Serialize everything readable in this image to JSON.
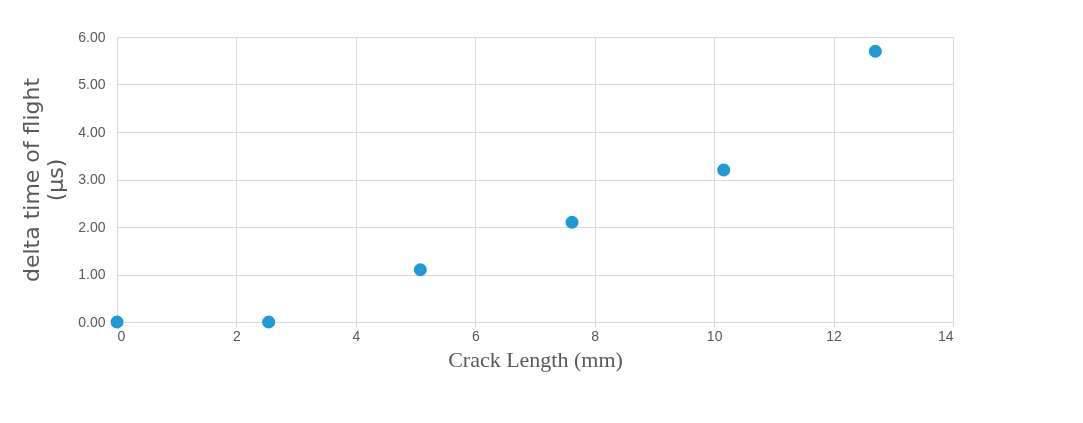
{
  "chart_data": {
    "type": "scatter",
    "xlabel": "Crack Length (mm)",
    "ylabel": "delta time of flight\n(µs)",
    "x": [
      0,
      2.54,
      5.08,
      7.62,
      10.16,
      12.7
    ],
    "series": [
      {
        "color": "#1f9ad6",
        "values": [
          0,
          0,
          1.1,
          2.1,
          3.2,
          5.7
        ]
      }
    ],
    "xlim": [
      0,
      14
    ],
    "xticks": [
      0,
      2,
      4,
      6,
      8,
      10,
      12,
      14
    ],
    "ylim": [
      0,
      6
    ],
    "yticks": [
      {
        "value": 0,
        "label": "0.00"
      },
      {
        "value": 1,
        "label": "1.00"
      },
      {
        "value": 2,
        "label": "2.00"
      },
      {
        "value": 3,
        "label": "3.00"
      },
      {
        "value": 4,
        "label": "4.00"
      },
      {
        "value": 5,
        "label": "5.00"
      },
      {
        "value": 6,
        "label": "6.00"
      }
    ],
    "grid": true,
    "marker": "circle"
  }
}
